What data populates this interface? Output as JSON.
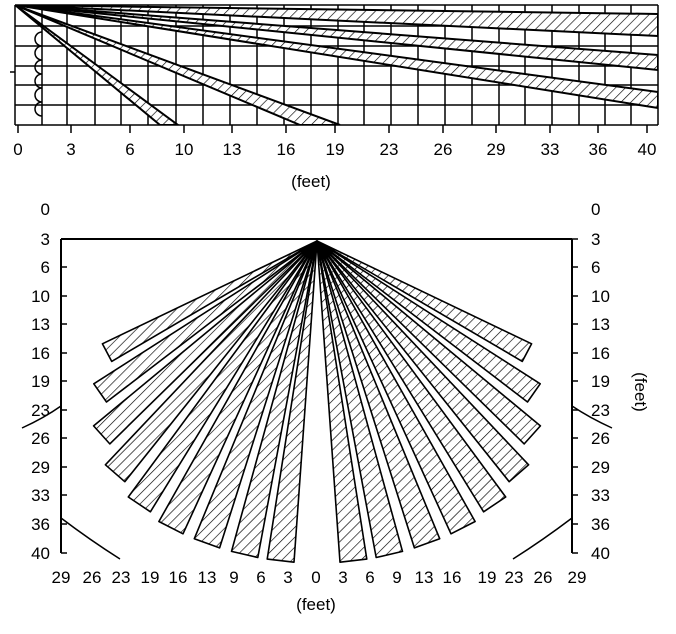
{
  "side_view": {
    "x_ticks": [
      "0",
      "3",
      "6",
      "10",
      "13",
      "16",
      "19",
      "23",
      "26",
      "29",
      "33",
      "36",
      "40"
    ],
    "unit_label": "(feet)"
  },
  "top_view": {
    "left_ticks": [
      "0",
      "3",
      "6",
      "10",
      "13",
      "16",
      "19",
      "23",
      "26",
      "29",
      "33",
      "36",
      "40"
    ],
    "right_ticks": [
      "0",
      "3",
      "6",
      "10",
      "13",
      "16",
      "19",
      "23",
      "26",
      "29",
      "33",
      "36",
      "40"
    ],
    "bottom_ticks": [
      "29",
      "26",
      "23",
      "19",
      "16",
      "13",
      "9",
      "6",
      "3",
      "0",
      "3",
      "6",
      "9",
      "13",
      "16",
      "19",
      "23",
      "26",
      "29"
    ],
    "bottom_unit_label": "(feet)",
    "right_unit_label": "(feet)"
  },
  "colors": {
    "line": "#000000",
    "background": "#ffffff"
  }
}
